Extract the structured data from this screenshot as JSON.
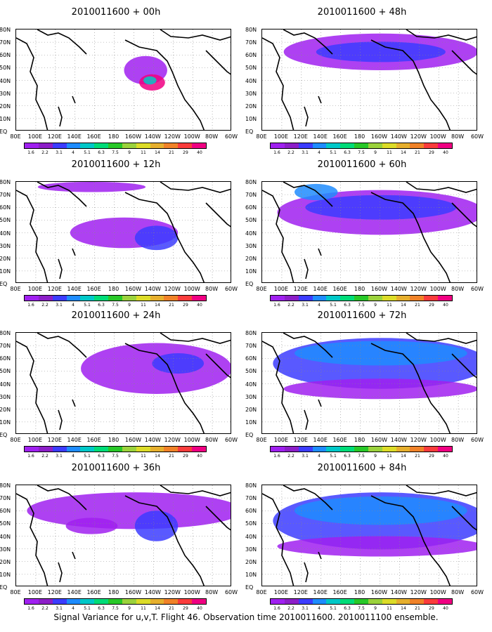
{
  "panels": [
    {
      "title": "2010011600 + 00h"
    },
    {
      "title": "2010011600 + 48h"
    },
    {
      "title": "2010011600 + 12h"
    },
    {
      "title": "2010011600 + 60h"
    },
    {
      "title": "2010011600 + 24h"
    },
    {
      "title": "2010011600 + 72h"
    },
    {
      "title": "2010011600 + 36h"
    },
    {
      "title": "2010011600 + 84h"
    }
  ],
  "lat_labels": [
    "80N",
    "70N",
    "60N",
    "50N",
    "40N",
    "30N",
    "20N",
    "10N",
    "EQ"
  ],
  "lon_labels": [
    "80E",
    "100E",
    "120E",
    "140E",
    "160E",
    "180",
    "160W",
    "140W",
    "120W",
    "100W",
    "80W",
    "60W"
  ],
  "colorbar": {
    "labels": [
      "1.6",
      "2.2",
      "3.1",
      "4",
      "5.1",
      "6.3",
      "7.5",
      "9",
      "11",
      "14",
      "21",
      "29",
      "40"
    ],
    "colors": [
      "#a020f0",
      "#8c1ec8",
      "#3c3cff",
      "#1e8cff",
      "#00c8c8",
      "#00dc78",
      "#28c828",
      "#9bd23c",
      "#dcdc28",
      "#e6af2d",
      "#f08228",
      "#fa3c3c",
      "#f00082"
    ]
  },
  "caption": "Signal Variance for u,v,T. Flight 46. Observation time 2010011600. 2010011100 ensemble."
}
